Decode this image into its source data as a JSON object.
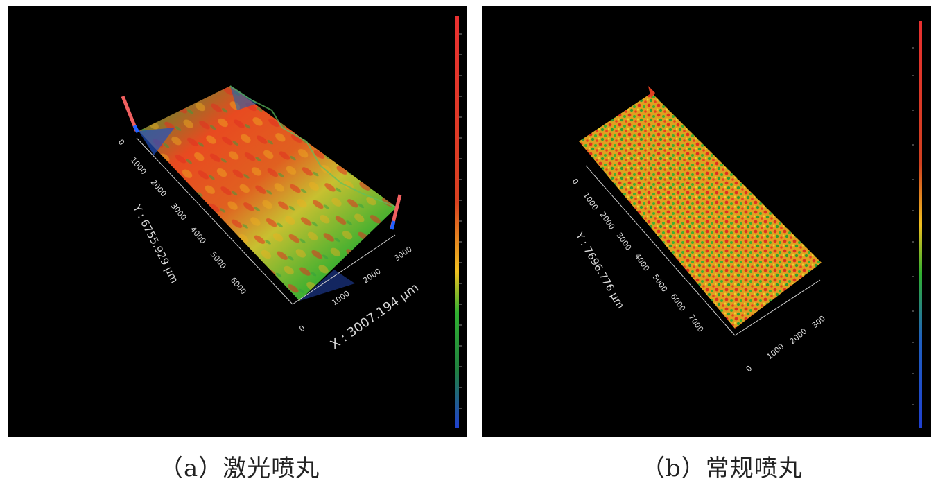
{
  "panels": [
    {
      "caption": "（a）激光喷丸",
      "y_axis_title": "Y : 6755.929 μm",
      "x_axis_title": "X : 3007.194 μm",
      "y_ticks": [
        "0",
        "1000",
        "2000",
        "3000",
        "4000",
        "5000",
        "6000"
      ],
      "x_ticks": [
        "0",
        "1000",
        "2000",
        "3000"
      ]
    },
    {
      "caption": "（b）常规喷丸",
      "y_axis_title": "Y : 7696.776 μm",
      "x_axis_title": "",
      "y_ticks": [
        "0",
        "1000",
        "2000",
        "3000",
        "4000",
        "5000",
        "6000",
        "7000"
      ],
      "x_ticks": [
        "0",
        "1000",
        "2000",
        "300"
      ]
    }
  ],
  "colors": {
    "background": "#000000",
    "scale_high": "#e03030",
    "scale_mid": "#f0d020",
    "scale_low_mid": "#30b030",
    "scale_low": "#2040d0"
  }
}
